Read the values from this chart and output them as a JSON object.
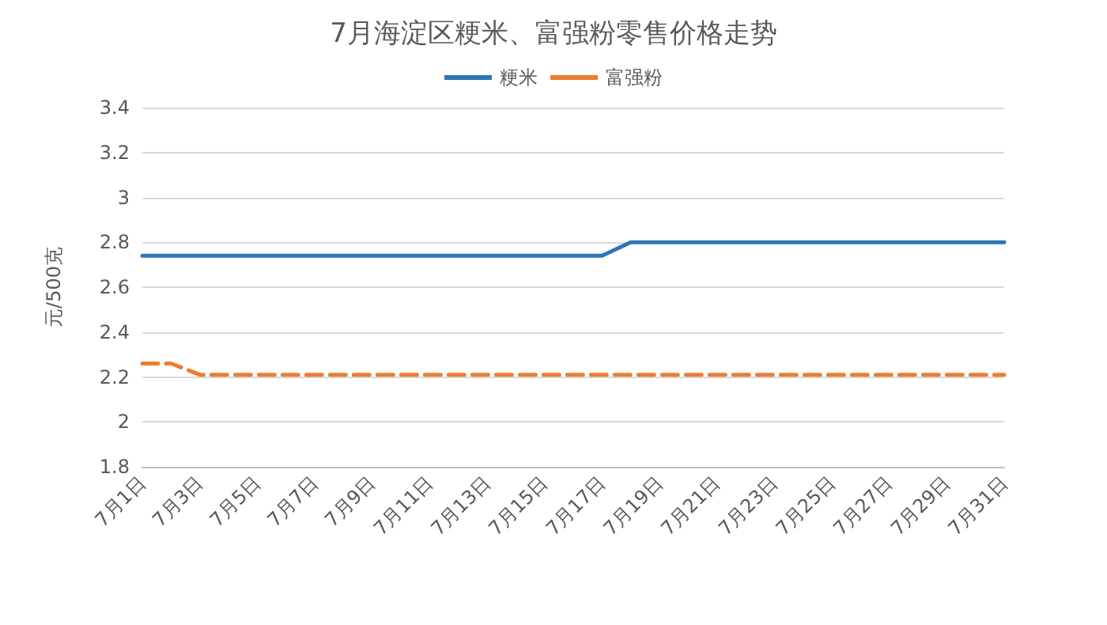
{
  "chart_data": {
    "type": "line",
    "title": "7月海淀区粳米、富强粉零售价格走势",
    "ylabel": "元/500克",
    "categories": [
      "7月1日",
      null,
      "7月3日",
      null,
      "7月5日",
      null,
      "7月7日",
      null,
      "7月9日",
      null,
      "7月11日",
      null,
      "7月13日",
      null,
      "7月15日",
      null,
      "7月17日",
      null,
      "7月19日",
      null,
      "7月21日",
      null,
      "7月23日",
      null,
      "7月25日",
      null,
      "7月27日",
      null,
      "7月29日",
      null,
      "7月31日"
    ],
    "series": [
      {
        "name": "粳米",
        "color": "#2e75b6",
        "line_style": "solid",
        "values": [
          2.74,
          2.74,
          2.74,
          2.74,
          2.74,
          2.74,
          2.74,
          2.74,
          2.74,
          2.74,
          2.74,
          2.74,
          2.74,
          2.74,
          2.74,
          2.74,
          2.74,
          2.8,
          2.8,
          2.8,
          2.8,
          2.8,
          2.8,
          2.8,
          2.8,
          2.8,
          2.8,
          2.8,
          2.8,
          2.8,
          2.8
        ]
      },
      {
        "name": "富强粉",
        "color": "#ed7d31",
        "line_style": "dashed",
        "values": [
          2.26,
          2.26,
          2.21,
          2.21,
          2.21,
          2.21,
          2.21,
          2.21,
          2.21,
          2.21,
          2.21,
          2.21,
          2.21,
          2.21,
          2.21,
          2.21,
          2.21,
          2.21,
          2.21,
          2.21,
          2.21,
          2.21,
          2.21,
          2.21,
          2.21,
          2.21,
          2.21,
          2.21,
          2.21,
          2.21,
          2.21
        ]
      }
    ],
    "ylim": [
      1.8,
      3.4
    ],
    "yticks": [
      1.8,
      2,
      2.2,
      2.4,
      2.6,
      2.8,
      3,
      3.2,
      3.4
    ],
    "grid": "y",
    "legend": "top",
    "marker": "none"
  }
}
